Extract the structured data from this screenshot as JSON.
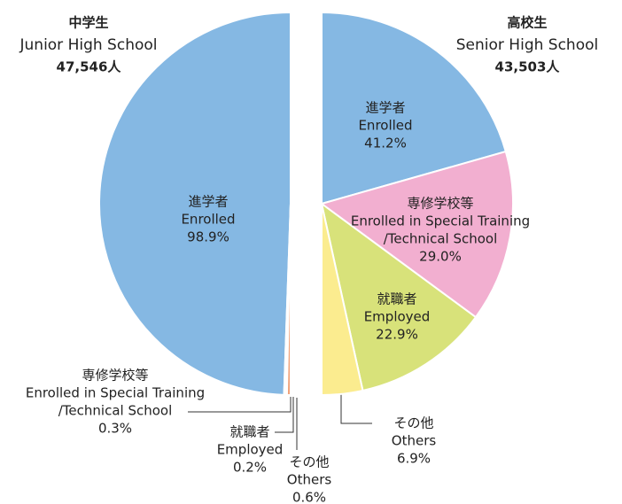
{
  "chart_data": [
    {
      "type": "pie",
      "title": "中学生",
      "subtitle": "Junior High School",
      "total": {
        "value": 47546,
        "label": "47,546人"
      },
      "categories": [
        [
          "進学者",
          "Enrolled"
        ],
        [
          "専修学校等",
          "Enrolled in Special Training",
          "/Technical School"
        ],
        [
          "就職者",
          "Employed"
        ],
        [
          "その他",
          "Others"
        ]
      ],
      "values": [
        98.9,
        0.3,
        0.2,
        0.6
      ],
      "value_labels": [
        "98.9%",
        "0.3%",
        "0.2%",
        "0.6%"
      ],
      "colors": [
        "#85b8e3",
        "#f0a27a",
        "#e9a07a",
        "#f0a27a"
      ]
    },
    {
      "type": "pie",
      "title": "高校生",
      "subtitle": "Senior High School",
      "total": {
        "value": 43503,
        "label": "43,503人"
      },
      "categories": [
        [
          "進学者",
          "Enrolled"
        ],
        [
          "専修学校等",
          "Enrolled in Special Training",
          "/Technical School"
        ],
        [
          "就職者",
          "Employed"
        ],
        [
          "その他",
          "Others"
        ]
      ],
      "values": [
        41.2,
        29.0,
        22.9,
        6.9
      ],
      "value_labels": [
        "41.2%",
        "29.0%",
        "22.9%",
        "6.9%"
      ],
      "colors": [
        "#85b8e3",
        "#f2afd0",
        "#d8e27a",
        "#fbec8f"
      ]
    }
  ]
}
